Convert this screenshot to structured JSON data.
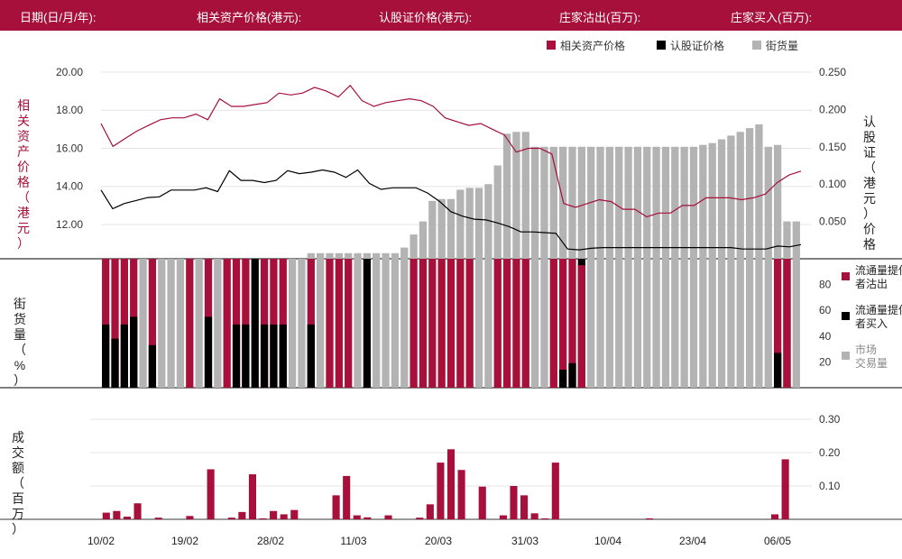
{
  "header": {
    "date_label": "日期(日/月/年):",
    "underlying_label": "相关资产价格(港元):",
    "warrant_label": "认股证价格(港元):",
    "dealer_sell_label": "庄家沽出(百万):",
    "dealer_buy_label": "庄家买入(百万):"
  },
  "colors": {
    "crimson": "#a6103a",
    "black": "#000000",
    "grey": "#b3b3b3",
    "bar_bg": "#a6103a"
  },
  "chart_data": [
    {
      "type": "line",
      "legend": [
        "相关资产价格",
        "认股证价格",
        "街货量"
      ],
      "legend_position": "top-right",
      "y_left_ticks": [
        "20.00",
        "18.00",
        "16.00",
        "14.00",
        "12.00"
      ],
      "y_left_range": [
        10.2,
        20.0
      ],
      "y_left_label": "相关资产价格（港元）",
      "y_right_ticks": [
        "0.250",
        "0.200",
        "0.150",
        "0.100",
        "0.050"
      ],
      "y_right_range": [
        0.0,
        0.25
      ],
      "y_right_label": "认股证（港元）价格",
      "series": [
        {
          "name": "相关资产价格",
          "values": [
            17.3,
            16.1,
            16.5,
            16.9,
            17.2,
            17.5,
            17.6,
            17.6,
            17.8,
            17.5,
            18.6,
            18.2,
            18.2,
            18.3,
            18.4,
            18.9,
            18.8,
            18.9,
            19.2,
            19.0,
            18.7,
            19.3,
            18.5,
            18.2,
            18.4,
            18.5,
            18.6,
            18.5,
            18.2,
            17.6,
            17.4,
            17.2,
            17.3,
            17.0,
            16.7,
            15.8,
            16.0,
            16.0,
            15.7,
            13.1,
            12.9,
            13.1,
            13.3,
            13.2,
            12.8,
            12.8,
            12.4,
            12.6,
            12.6,
            13.0,
            13.0,
            13.4,
            13.4,
            13.4,
            13.3,
            13.4,
            13.6,
            14.2,
            14.6,
            14.8
          ]
        },
        {
          "name": "认股证价格",
          "values": [
            0.092,
            0.067,
            0.074,
            0.078,
            0.082,
            0.083,
            0.092,
            0.092,
            0.092,
            0.095,
            0.09,
            0.118,
            0.105,
            0.105,
            0.102,
            0.105,
            0.118,
            0.114,
            0.116,
            0.119,
            0.116,
            0.109,
            0.119,
            0.101,
            0.093,
            0.095,
            0.095,
            0.095,
            0.088,
            0.077,
            0.063,
            0.057,
            0.053,
            0.052,
            0.048,
            0.043,
            0.036,
            0.036,
            0.035,
            0.034,
            0.013,
            0.012,
            0.014,
            0.015,
            0.015,
            0.015,
            0.015,
            0.015,
            0.015,
            0.015,
            0.015,
            0.015,
            0.015,
            0.015,
            0.015,
            0.013,
            0.013,
            0.013,
            0.017,
            0.016,
            0.019
          ]
        }
      ]
    },
    {
      "type": "bar",
      "name": "街货量",
      "values": [
        0,
        0,
        0,
        0,
        0,
        0,
        0,
        0,
        0,
        0,
        0,
        0,
        0,
        0,
        0,
        0,
        0,
        0,
        0,
        0,
        0,
        0,
        3,
        3,
        3,
        3,
        3,
        3,
        3,
        3,
        3,
        3,
        6,
        13,
        20,
        31,
        32,
        32,
        37,
        38,
        38,
        40,
        50,
        67,
        68,
        68,
        60,
        60,
        60,
        60,
        60,
        60,
        60,
        60,
        60,
        60,
        60,
        60,
        60,
        60,
        60,
        60,
        60,
        60,
        61,
        62,
        64,
        66,
        68,
        70,
        72,
        60,
        61,
        20,
        20
      ],
      "scale_max": 100
    },
    {
      "type": "bar",
      "name": "stacked-percent",
      "y_ticks": [
        "80",
        "60",
        "40",
        "20"
      ],
      "y_range": [
        0,
        100
      ],
      "y_label": "街货量（%）",
      "legend": [
        "流通量提供者沽出",
        "流通量提供者买入",
        "市场交易量"
      ],
      "legend_position": "right",
      "bars": [
        [
          "r",
          49
        ],
        [
          "r",
          38
        ],
        [
          "r",
          49
        ],
        [
          "r",
          55
        ],
        [
          "g",
          0
        ],
        [
          "r",
          33
        ],
        [
          "g",
          0
        ],
        [
          "g",
          0
        ],
        [
          "g",
          0
        ],
        [
          "r",
          0
        ],
        [
          "g",
          0
        ],
        [
          "r",
          55
        ],
        [
          "g",
          0
        ],
        [
          "r",
          0
        ],
        [
          "r",
          49
        ],
        [
          "r",
          49
        ],
        [
          "k",
          0
        ],
        [
          "r",
          49
        ],
        [
          "r",
          49
        ],
        [
          "r",
          49
        ],
        [
          "g",
          0
        ],
        [
          "g",
          0
        ],
        [
          "r",
          49
        ],
        [
          "g",
          0
        ],
        [
          "r",
          0
        ],
        [
          "r",
          0
        ],
        [
          "r",
          0
        ],
        [
          "g",
          0
        ],
        [
          "k",
          0
        ],
        [
          "g",
          0
        ],
        [
          "g",
          0
        ],
        [
          "g",
          0
        ],
        [
          "g",
          0
        ],
        [
          "r",
          0
        ],
        [
          "r",
          0
        ],
        [
          "r",
          0
        ],
        [
          "r",
          0
        ],
        [
          "r",
          0
        ],
        [
          "r",
          0
        ],
        [
          "r",
          0
        ],
        [
          "g",
          0
        ],
        [
          "g",
          0
        ],
        [
          "r",
          0
        ],
        [
          "r",
          0
        ],
        [
          "r",
          0
        ],
        [
          "r",
          0
        ],
        [
          "g",
          0
        ],
        [
          "g",
          0
        ],
        [
          "r",
          0
        ],
        [
          "r",
          14
        ],
        [
          "r",
          19
        ],
        [
          "k",
          95
        ],
        [
          "g",
          0
        ],
        [
          "g",
          0
        ],
        [
          "g",
          0
        ],
        [
          "g",
          0
        ],
        [
          "g",
          0
        ],
        [
          "g",
          0
        ],
        [
          "g",
          0
        ],
        [
          "g",
          0
        ],
        [
          "g",
          0
        ],
        [
          "g",
          0
        ],
        [
          "g",
          0
        ],
        [
          "g",
          0
        ],
        [
          "g",
          0
        ],
        [
          "g",
          0
        ],
        [
          "g",
          0
        ],
        [
          "g",
          0
        ],
        [
          "g",
          0
        ],
        [
          "g",
          0
        ],
        [
          "g",
          0
        ],
        [
          "g",
          0
        ],
        [
          "r",
          27
        ],
        [
          "k",
          100
        ],
        [
          "g",
          0
        ]
      ]
    },
    {
      "type": "bar",
      "name": "成交额",
      "y_ticks": [
        "0.30",
        "0.20",
        "0.10"
      ],
      "y_range": [
        0,
        0.3
      ],
      "y_label": "成交额（百万）",
      "values": [
        0.02,
        0.025,
        0.008,
        0.048,
        0,
        0.005,
        0,
        0,
        0.01,
        0,
        0.15,
        0,
        0.005,
        0.022,
        0.135,
        0.003,
        0.025,
        0.015,
        0.028,
        0,
        0,
        0,
        0.072,
        0.13,
        0.012,
        0.006,
        0,
        0.012,
        0,
        0,
        0.005,
        0.045,
        0.17,
        0.21,
        0.148,
        0,
        0.098,
        0,
        0.012,
        0.1,
        0.072,
        0.018,
        0.003,
        0.17,
        0,
        0,
        0,
        0,
        0,
        0,
        0,
        0,
        0.003,
        0,
        0,
        0,
        0,
        0,
        0,
        0,
        0,
        0,
        0,
        0,
        0.015,
        0.18,
        0
      ],
      "x_ticks": [
        "10/02",
        "19/02",
        "28/02",
        "11/03",
        "20/03",
        "31/03",
        "10/04",
        "23/04",
        "06/05"
      ]
    }
  ]
}
